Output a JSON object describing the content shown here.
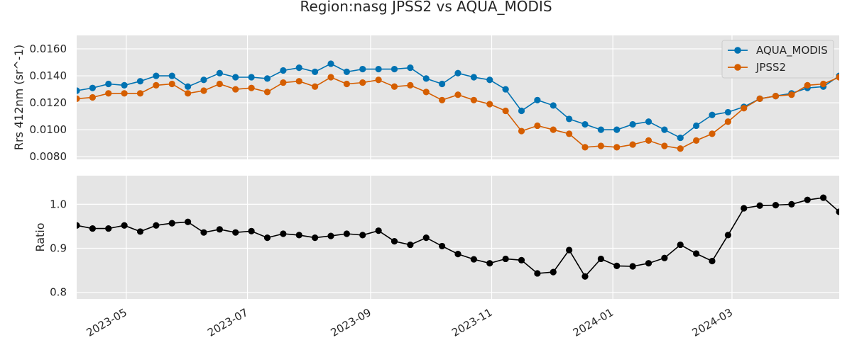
{
  "title": "Region:nasg JPSS2 vs AQUA_MODIS",
  "chart_data": [
    {
      "type": "line",
      "ylabel": "Rrs 412nm (sr^-1)",
      "xlabel": "",
      "ylim": [
        0.0078,
        0.017
      ],
      "yticks": [
        "0.0080",
        "0.0100",
        "0.0120",
        "0.0140",
        "0.0160"
      ],
      "legend_position": "top-right",
      "grid": true,
      "series": [
        {
          "name": "AQUA_MODIS",
          "color": "#0072B2",
          "values": [
            0.0129,
            0.0131,
            0.0134,
            0.0133,
            0.0136,
            0.014,
            0.014,
            0.0132,
            0.0137,
            0.0142,
            0.0139,
            0.0139,
            0.0138,
            0.0144,
            0.0146,
            0.0143,
            0.0149,
            0.0143,
            0.0145,
            0.0145,
            0.0145,
            0.0146,
            0.0138,
            0.0134,
            0.0142,
            0.0139,
            0.0137,
            0.013,
            0.0114,
            0.0122,
            0.0118,
            0.0108,
            0.0104,
            0.01,
            0.01,
            0.0104,
            0.0106,
            0.01,
            0.0094,
            0.0103,
            0.0111,
            0.0113,
            0.0117,
            0.0123,
            0.0125,
            0.0127,
            0.0131,
            0.0132,
            0.014
          ]
        },
        {
          "name": "JPSS2",
          "color": "#D55E00",
          "values": [
            0.0123,
            0.0124,
            0.0127,
            0.0127,
            0.0127,
            0.0133,
            0.0134,
            0.0127,
            0.0129,
            0.0134,
            0.013,
            0.0131,
            0.0128,
            0.0135,
            0.0136,
            0.0132,
            0.0139,
            0.0134,
            0.0135,
            0.0137,
            0.0132,
            0.0133,
            0.0128,
            0.0122,
            0.0126,
            0.0122,
            0.0119,
            0.0114,
            0.0099,
            0.0103,
            0.01,
            0.0097,
            0.0087,
            0.0088,
            0.0087,
            0.0089,
            0.0092,
            0.0088,
            0.0086,
            0.0092,
            0.0097,
            0.0106,
            0.0116,
            0.0123,
            0.0125,
            0.0126,
            0.0133,
            0.0134,
            0.0139
          ]
        }
      ]
    },
    {
      "type": "line",
      "ylabel": "Ratio",
      "xlabel": "",
      "ylim": [
        0.785,
        1.065
      ],
      "yticks": [
        "0.8",
        "0.9",
        "1.0"
      ],
      "grid": true,
      "series": [
        {
          "name": "",
          "color": "#000000",
          "values": [
            0.952,
            0.945,
            0.945,
            0.952,
            0.938,
            0.952,
            0.957,
            0.96,
            0.936,
            0.943,
            0.936,
            0.939,
            0.924,
            0.933,
            0.93,
            0.924,
            0.928,
            0.933,
            0.93,
            0.94,
            0.916,
            0.908,
            0.924,
            0.905,
            0.887,
            0.875,
            0.866,
            0.876,
            0.873,
            0.843,
            0.846,
            0.896,
            0.836,
            0.876,
            0.86,
            0.859,
            0.866,
            0.878,
            0.908,
            0.888,
            0.871,
            0.93,
            0.991,
            0.997,
            0.998,
            1.0,
            1.01,
            1.015,
            0.983
          ]
        }
      ]
    }
  ],
  "x_axis": {
    "dates": [
      "2023-04-06",
      "2023-04-14",
      "2023-04-22",
      "2023-04-30",
      "2023-05-08",
      "2023-05-16",
      "2023-05-24",
      "2023-06-01",
      "2023-06-09",
      "2023-06-17",
      "2023-06-25",
      "2023-07-03",
      "2023-07-11",
      "2023-07-19",
      "2023-07-27",
      "2023-08-04",
      "2023-08-12",
      "2023-08-20",
      "2023-08-28",
      "2023-09-05",
      "2023-09-13",
      "2023-09-21",
      "2023-09-29",
      "2023-10-07",
      "2023-10-15",
      "2023-10-23",
      "2023-10-31",
      "2023-11-08",
      "2023-11-16",
      "2023-11-24",
      "2023-12-02",
      "2023-12-10",
      "2023-12-18",
      "2023-12-26",
      "2024-01-03",
      "2024-01-11",
      "2024-01-19",
      "2024-01-27",
      "2024-02-04",
      "2024-02-12",
      "2024-02-20",
      "2024-02-28",
      "2024-03-07",
      "2024-03-15",
      "2024-03-23",
      "2024-03-31",
      "2024-04-08",
      "2024-04-16",
      "2024-04-24"
    ],
    "range": [
      "2023-04-06",
      "2024-04-24"
    ],
    "tick_labels": [
      "2023-05",
      "2023-07",
      "2023-09",
      "2023-11",
      "2024-01",
      "2024-03"
    ]
  }
}
